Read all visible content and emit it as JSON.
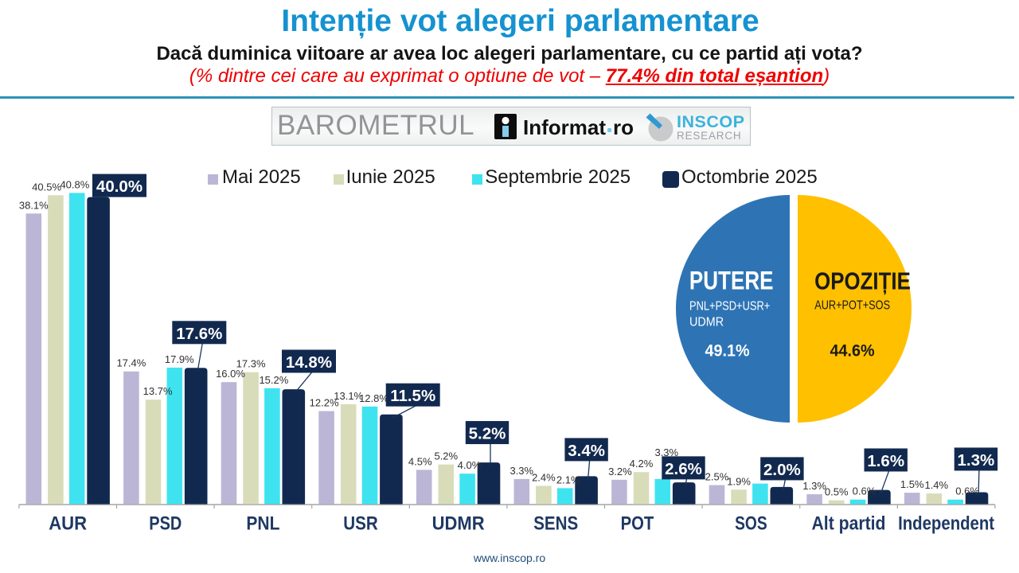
{
  "header": {
    "title": "Intenție vot alegeri parlamentare",
    "subtitle": "Dacă duminica viitoare ar avea loc alegeri parlamentare, cu ce partid ați vota?",
    "note_prefix": "(% dintre cei care au exprimat o optiune de vot – ",
    "note_underlined": "77.4% din total eșantion",
    "note_suffix": ")"
  },
  "brand": {
    "barometrul": "BAROMETRUL",
    "informat_name": "Informat",
    "informat_tld": "ro",
    "inscop_name": "INSCOP",
    "inscop_research": "RESEARCH"
  },
  "chart_data": [
    {
      "type": "bar",
      "title": "Intenție vot alegeri parlamentare",
      "categories": [
        "AUR",
        "PSD",
        "PNL",
        "USR",
        "UDMR",
        "SENS",
        "POT",
        "SOS",
        "Alt partid",
        "Independent"
      ],
      "series": [
        {
          "name": "Mai 2025",
          "color": "#bcb6d6",
          "values": [
            38.1,
            17.4,
            16.0,
            12.2,
            4.5,
            3.3,
            3.2,
            2.5,
            1.3,
            1.5
          ]
        },
        {
          "name": "Iunie 2025",
          "color": "#d9dcb9",
          "values": [
            40.5,
            13.7,
            17.3,
            13.1,
            5.2,
            2.4,
            4.2,
            1.9,
            0.5,
            1.4
          ]
        },
        {
          "name": "Septembrie 2025",
          "color": "#3fe3f0",
          "values": [
            40.8,
            17.9,
            15.2,
            12.8,
            4.0,
            2.1,
            3.3,
            2.7,
            0.6,
            0.6
          ]
        },
        {
          "name": "Octombrie 2025",
          "color": "#12294f",
          "values": [
            40.0,
            17.6,
            14.8,
            11.5,
            5.2,
            3.4,
            2.6,
            2.0,
            1.6,
            1.3
          ]
        }
      ],
      "highlight_series": "Octombrie 2025",
      "value_suffix": "%",
      "ylim": [
        0,
        45
      ],
      "grid": false,
      "legend_position": "top",
      "axis_color": "#a6a6a6",
      "category_label_color": "#1f3864",
      "value_label_color": "#303030",
      "highlight_label_text_color": "#ffffff"
    },
    {
      "type": "pie",
      "slices": [
        {
          "label": "PUTERE",
          "sublabel_lines": [
            "PNL+PSD+USR+",
            "UDMR"
          ],
          "value_label": "49.1%",
          "value": 49.1,
          "color": "#2e74b5",
          "text_color": "#ffffff"
        },
        {
          "label": "OPOZIȚIE",
          "sublabel_lines": [
            "AUR+POT+SOS"
          ],
          "value_label": "44.6%",
          "value": 44.6,
          "color": "#ffc000",
          "text_color": "#1a1a1a"
        }
      ]
    }
  ],
  "footer": {
    "website": "www.inscop.ro"
  }
}
